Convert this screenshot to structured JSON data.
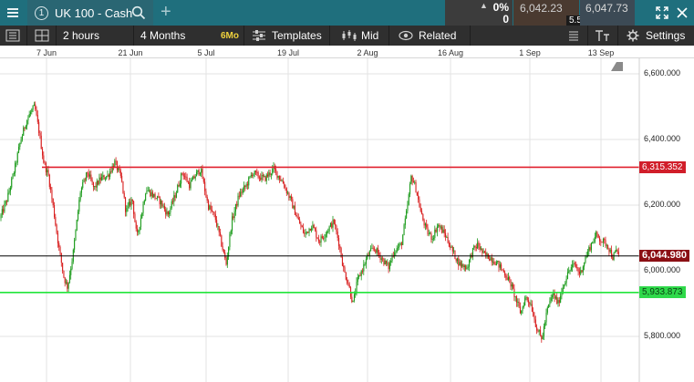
{
  "header": {
    "tab_number": "1",
    "instrument": "UK 100 - Cash",
    "position_pct": "0%",
    "position_qty": "0",
    "sell_price": "6,042.23",
    "buy_price": "6,047.73",
    "spread": "5.50"
  },
  "toolbar": {
    "interval": "2 hours",
    "range": "4 Months",
    "period_badge": "6Mo",
    "templates": "Templates",
    "price_type": "Mid",
    "related": "Related",
    "settings": "Settings"
  },
  "time_axis": [
    "7 Jun",
    "21 Jun",
    "5 Jul",
    "19 Jul",
    "2 Aug",
    "16 Aug",
    "1 Sep",
    "13 Sep"
  ],
  "chart_data": {
    "type": "candlestick",
    "instrument": "UK 100 - Cash",
    "interval": "2 hours",
    "x_ticks": [
      "7 Jun",
      "21 Jun",
      "5 Jul",
      "19 Jul",
      "2 Aug",
      "16 Aug",
      "1 Sep",
      "13 Sep"
    ],
    "y_ticks": [
      "6,600.000",
      "6,400.000",
      "6,200.000",
      "6,000.000",
      "5,800.000"
    ],
    "y_tick_values": [
      6600,
      6400,
      6200,
      6000,
      5800
    ],
    "ylim": [
      5700,
      6640
    ],
    "grid": true,
    "up_color": "#1a9a1a",
    "down_color": "#d81e1e",
    "horizontal_lines": [
      {
        "value": 6315.352,
        "label": "6,315.352",
        "color": "#e0202e"
      },
      {
        "value": 6044.98,
        "label": "6,044.980",
        "color": "#000000"
      },
      {
        "value": 5933.873,
        "label": "5,933.873",
        "color": "#22e53a"
      }
    ],
    "path_x": [
      0,
      8,
      16,
      22,
      28,
      33,
      38,
      43,
      48,
      53,
      58,
      64,
      70,
      74,
      80,
      88,
      96,
      103,
      110,
      118,
      126,
      133,
      138,
      145,
      150,
      155,
      160,
      168,
      176,
      184,
      192,
      200,
      208,
      214,
      220,
      228,
      236,
      243,
      248,
      254,
      262,
      270,
      277,
      282,
      290,
      300,
      310,
      318,
      326,
      334,
      342,
      350,
      358,
      366,
      372,
      377,
      382,
      387,
      392,
      398,
      404,
      410,
      418,
      426,
      432,
      440,
      446,
      451,
      456,
      462,
      468,
      474,
      480,
      488,
      496,
      504,
      512,
      518,
      524,
      530,
      538,
      546,
      554,
      560,
      566,
      571,
      576,
      582,
      588,
      594,
      600,
      606,
      612,
      618,
      624,
      630,
      636,
      642,
      648,
      654,
      660,
      666,
      672,
      676,
      680
    ],
    "path_y": [
      6160,
      6220,
      6310,
      6390,
      6450,
      6480,
      6500,
      6420,
      6330,
      6290,
      6200,
      6080,
      5980,
      5950,
      6050,
      6240,
      6300,
      6250,
      6280,
      6290,
      6330,
      6280,
      6180,
      6220,
      6100,
      6170,
      6250,
      6230,
      6210,
      6170,
      6230,
      6300,
      6260,
      6290,
      6310,
      6200,
      6160,
      6080,
      6020,
      6150,
      6230,
      6260,
      6300,
      6290,
      6280,
      6310,
      6270,
      6220,
      6160,
      6110,
      6140,
      6090,
      6120,
      6150,
      6080,
      6000,
      5960,
      5900,
      5970,
      6010,
      6050,
      6070,
      6040,
      6010,
      6060,
      6080,
      6180,
      6290,
      6250,
      6170,
      6120,
      6100,
      6140,
      6110,
      6060,
      6020,
      6010,
      6060,
      6080,
      6050,
      6040,
      6020,
      5990,
      5960,
      5910,
      5870,
      5920,
      5900,
      5830,
      5790,
      5880,
      5930,
      5900,
      5960,
      6000,
      6020,
      5990,
      6040,
      6080,
      6110,
      6090,
      6080,
      6040,
      6060,
      6045
    ]
  }
}
